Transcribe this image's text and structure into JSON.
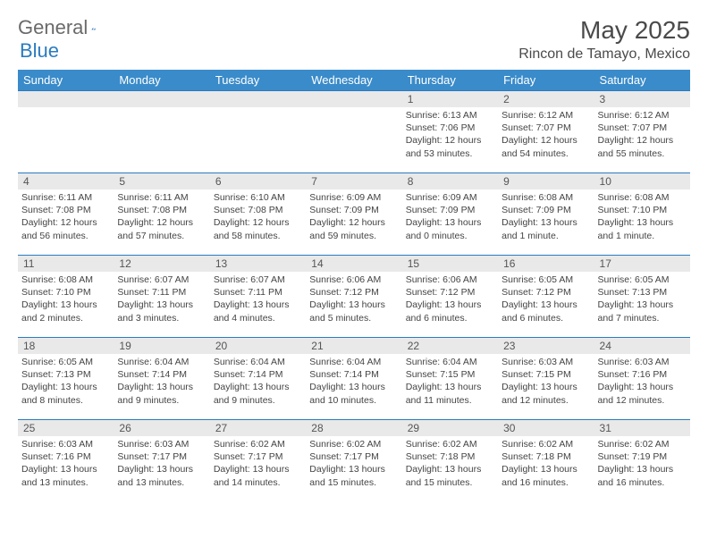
{
  "logo": {
    "text1": "General",
    "text2": "Blue"
  },
  "title": "May 2025",
  "location": "Rincon de Tamayo, Mexico",
  "colors": {
    "header_bg": "#3a8bc9",
    "border": "#2b7bbf",
    "daynum_bg": "#e9e9e9",
    "text": "#444444",
    "title": "#4a4a4a"
  },
  "weekdays": [
    "Sunday",
    "Monday",
    "Tuesday",
    "Wednesday",
    "Thursday",
    "Friday",
    "Saturday"
  ],
  "labels": {
    "sunrise": "Sunrise:",
    "sunset": "Sunset:",
    "daylight": "Daylight:"
  },
  "weeks": [
    [
      null,
      null,
      null,
      null,
      {
        "n": "1",
        "sr": "6:13 AM",
        "ss": "7:06 PM",
        "dl": "12 hours and 53 minutes."
      },
      {
        "n": "2",
        "sr": "6:12 AM",
        "ss": "7:07 PM",
        "dl": "12 hours and 54 minutes."
      },
      {
        "n": "3",
        "sr": "6:12 AM",
        "ss": "7:07 PM",
        "dl": "12 hours and 55 minutes."
      }
    ],
    [
      {
        "n": "4",
        "sr": "6:11 AM",
        "ss": "7:08 PM",
        "dl": "12 hours and 56 minutes."
      },
      {
        "n": "5",
        "sr": "6:11 AM",
        "ss": "7:08 PM",
        "dl": "12 hours and 57 minutes."
      },
      {
        "n": "6",
        "sr": "6:10 AM",
        "ss": "7:08 PM",
        "dl": "12 hours and 58 minutes."
      },
      {
        "n": "7",
        "sr": "6:09 AM",
        "ss": "7:09 PM",
        "dl": "12 hours and 59 minutes."
      },
      {
        "n": "8",
        "sr": "6:09 AM",
        "ss": "7:09 PM",
        "dl": "13 hours and 0 minutes."
      },
      {
        "n": "9",
        "sr": "6:08 AM",
        "ss": "7:09 PM",
        "dl": "13 hours and 1 minute."
      },
      {
        "n": "10",
        "sr": "6:08 AM",
        "ss": "7:10 PM",
        "dl": "13 hours and 1 minute."
      }
    ],
    [
      {
        "n": "11",
        "sr": "6:08 AM",
        "ss": "7:10 PM",
        "dl": "13 hours and 2 minutes."
      },
      {
        "n": "12",
        "sr": "6:07 AM",
        "ss": "7:11 PM",
        "dl": "13 hours and 3 minutes."
      },
      {
        "n": "13",
        "sr": "6:07 AM",
        "ss": "7:11 PM",
        "dl": "13 hours and 4 minutes."
      },
      {
        "n": "14",
        "sr": "6:06 AM",
        "ss": "7:12 PM",
        "dl": "13 hours and 5 minutes."
      },
      {
        "n": "15",
        "sr": "6:06 AM",
        "ss": "7:12 PM",
        "dl": "13 hours and 6 minutes."
      },
      {
        "n": "16",
        "sr": "6:05 AM",
        "ss": "7:12 PM",
        "dl": "13 hours and 6 minutes."
      },
      {
        "n": "17",
        "sr": "6:05 AM",
        "ss": "7:13 PM",
        "dl": "13 hours and 7 minutes."
      }
    ],
    [
      {
        "n": "18",
        "sr": "6:05 AM",
        "ss": "7:13 PM",
        "dl": "13 hours and 8 minutes."
      },
      {
        "n": "19",
        "sr": "6:04 AM",
        "ss": "7:14 PM",
        "dl": "13 hours and 9 minutes."
      },
      {
        "n": "20",
        "sr": "6:04 AM",
        "ss": "7:14 PM",
        "dl": "13 hours and 9 minutes."
      },
      {
        "n": "21",
        "sr": "6:04 AM",
        "ss": "7:14 PM",
        "dl": "13 hours and 10 minutes."
      },
      {
        "n": "22",
        "sr": "6:04 AM",
        "ss": "7:15 PM",
        "dl": "13 hours and 11 minutes."
      },
      {
        "n": "23",
        "sr": "6:03 AM",
        "ss": "7:15 PM",
        "dl": "13 hours and 12 minutes."
      },
      {
        "n": "24",
        "sr": "6:03 AM",
        "ss": "7:16 PM",
        "dl": "13 hours and 12 minutes."
      }
    ],
    [
      {
        "n": "25",
        "sr": "6:03 AM",
        "ss": "7:16 PM",
        "dl": "13 hours and 13 minutes."
      },
      {
        "n": "26",
        "sr": "6:03 AM",
        "ss": "7:17 PM",
        "dl": "13 hours and 13 minutes."
      },
      {
        "n": "27",
        "sr": "6:02 AM",
        "ss": "7:17 PM",
        "dl": "13 hours and 14 minutes."
      },
      {
        "n": "28",
        "sr": "6:02 AM",
        "ss": "7:17 PM",
        "dl": "13 hours and 15 minutes."
      },
      {
        "n": "29",
        "sr": "6:02 AM",
        "ss": "7:18 PM",
        "dl": "13 hours and 15 minutes."
      },
      {
        "n": "30",
        "sr": "6:02 AM",
        "ss": "7:18 PM",
        "dl": "13 hours and 16 minutes."
      },
      {
        "n": "31",
        "sr": "6:02 AM",
        "ss": "7:19 PM",
        "dl": "13 hours and 16 minutes."
      }
    ]
  ]
}
